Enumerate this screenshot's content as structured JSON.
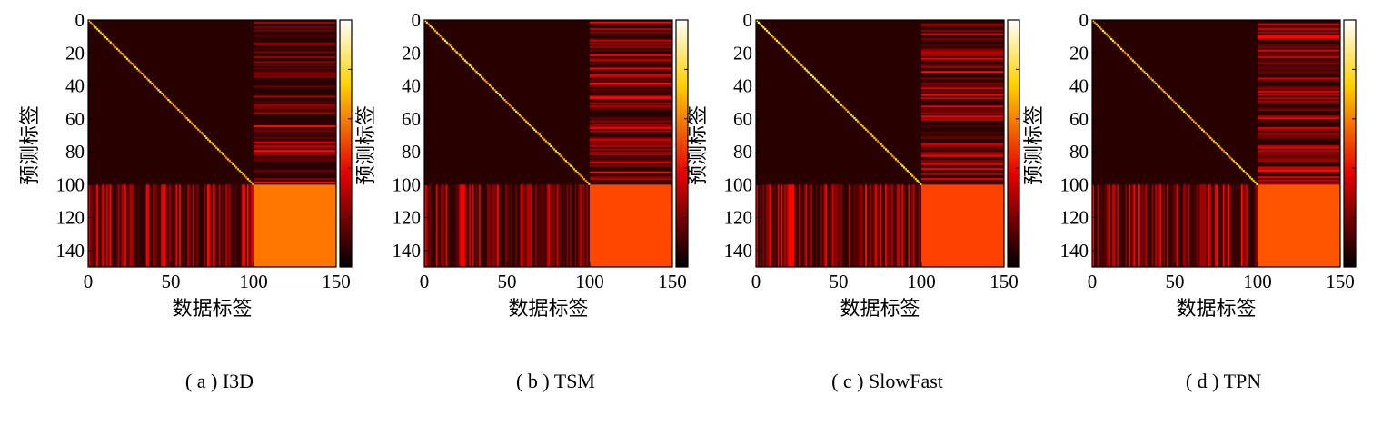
{
  "chart_data": [
    {
      "type": "heatmap",
      "caption": "( a ) I3D",
      "xlabel": "数据标签",
      "ylabel": "预测标签",
      "xticks": [
        "0",
        "50",
        "100",
        "150"
      ],
      "yticks": [
        "0",
        "20",
        "40",
        "60",
        "80",
        "100",
        "120",
        "140"
      ],
      "xlim": [
        0,
        150
      ],
      "ylim": [
        0,
        150
      ],
      "n_classes": 150,
      "known_classes": 100,
      "diagonal_intensity": 0.75,
      "unknown_block_intensity": 0.55,
      "colormap": "hot",
      "colorbar": true
    },
    {
      "type": "heatmap",
      "caption": "( b ) TSM",
      "xlabel": "数据标签",
      "ylabel": "预测标签",
      "xticks": [
        "0",
        "50",
        "100",
        "150"
      ],
      "yticks": [
        "0",
        "20",
        "40",
        "60",
        "80",
        "100",
        "120",
        "140"
      ],
      "xlim": [
        0,
        150
      ],
      "ylim": [
        0,
        150
      ],
      "n_classes": 150,
      "known_classes": 100,
      "diagonal_intensity": 0.8,
      "unknown_block_intensity": 0.48,
      "colormap": "hot",
      "colorbar": true
    },
    {
      "type": "heatmap",
      "caption": "( c ) SlowFast",
      "xlabel": "数据标签",
      "ylabel": "预测标签",
      "xticks": [
        "0",
        "50",
        "100",
        "150"
      ],
      "yticks": [
        "0",
        "20",
        "40",
        "60",
        "80",
        "100",
        "120",
        "140"
      ],
      "xlim": [
        0,
        150
      ],
      "ylim": [
        0,
        150
      ],
      "n_classes": 150,
      "known_classes": 100,
      "diagonal_intensity": 0.82,
      "unknown_block_intensity": 0.47,
      "colormap": "hot",
      "colorbar": true
    },
    {
      "type": "heatmap",
      "caption": "( d ) TPN",
      "xlabel": "数据标签",
      "ylabel": "预测标签",
      "xticks": [
        "0",
        "50",
        "100",
        "150"
      ],
      "yticks": [
        "0",
        "20",
        "40",
        "60",
        "80",
        "100",
        "120",
        "140"
      ],
      "xlim": [
        0,
        150
      ],
      "ylim": [
        0,
        150
      ],
      "n_classes": 150,
      "known_classes": 100,
      "diagonal_intensity": 0.78,
      "unknown_block_intensity": 0.5,
      "colormap": "hot",
      "colorbar": true
    }
  ]
}
